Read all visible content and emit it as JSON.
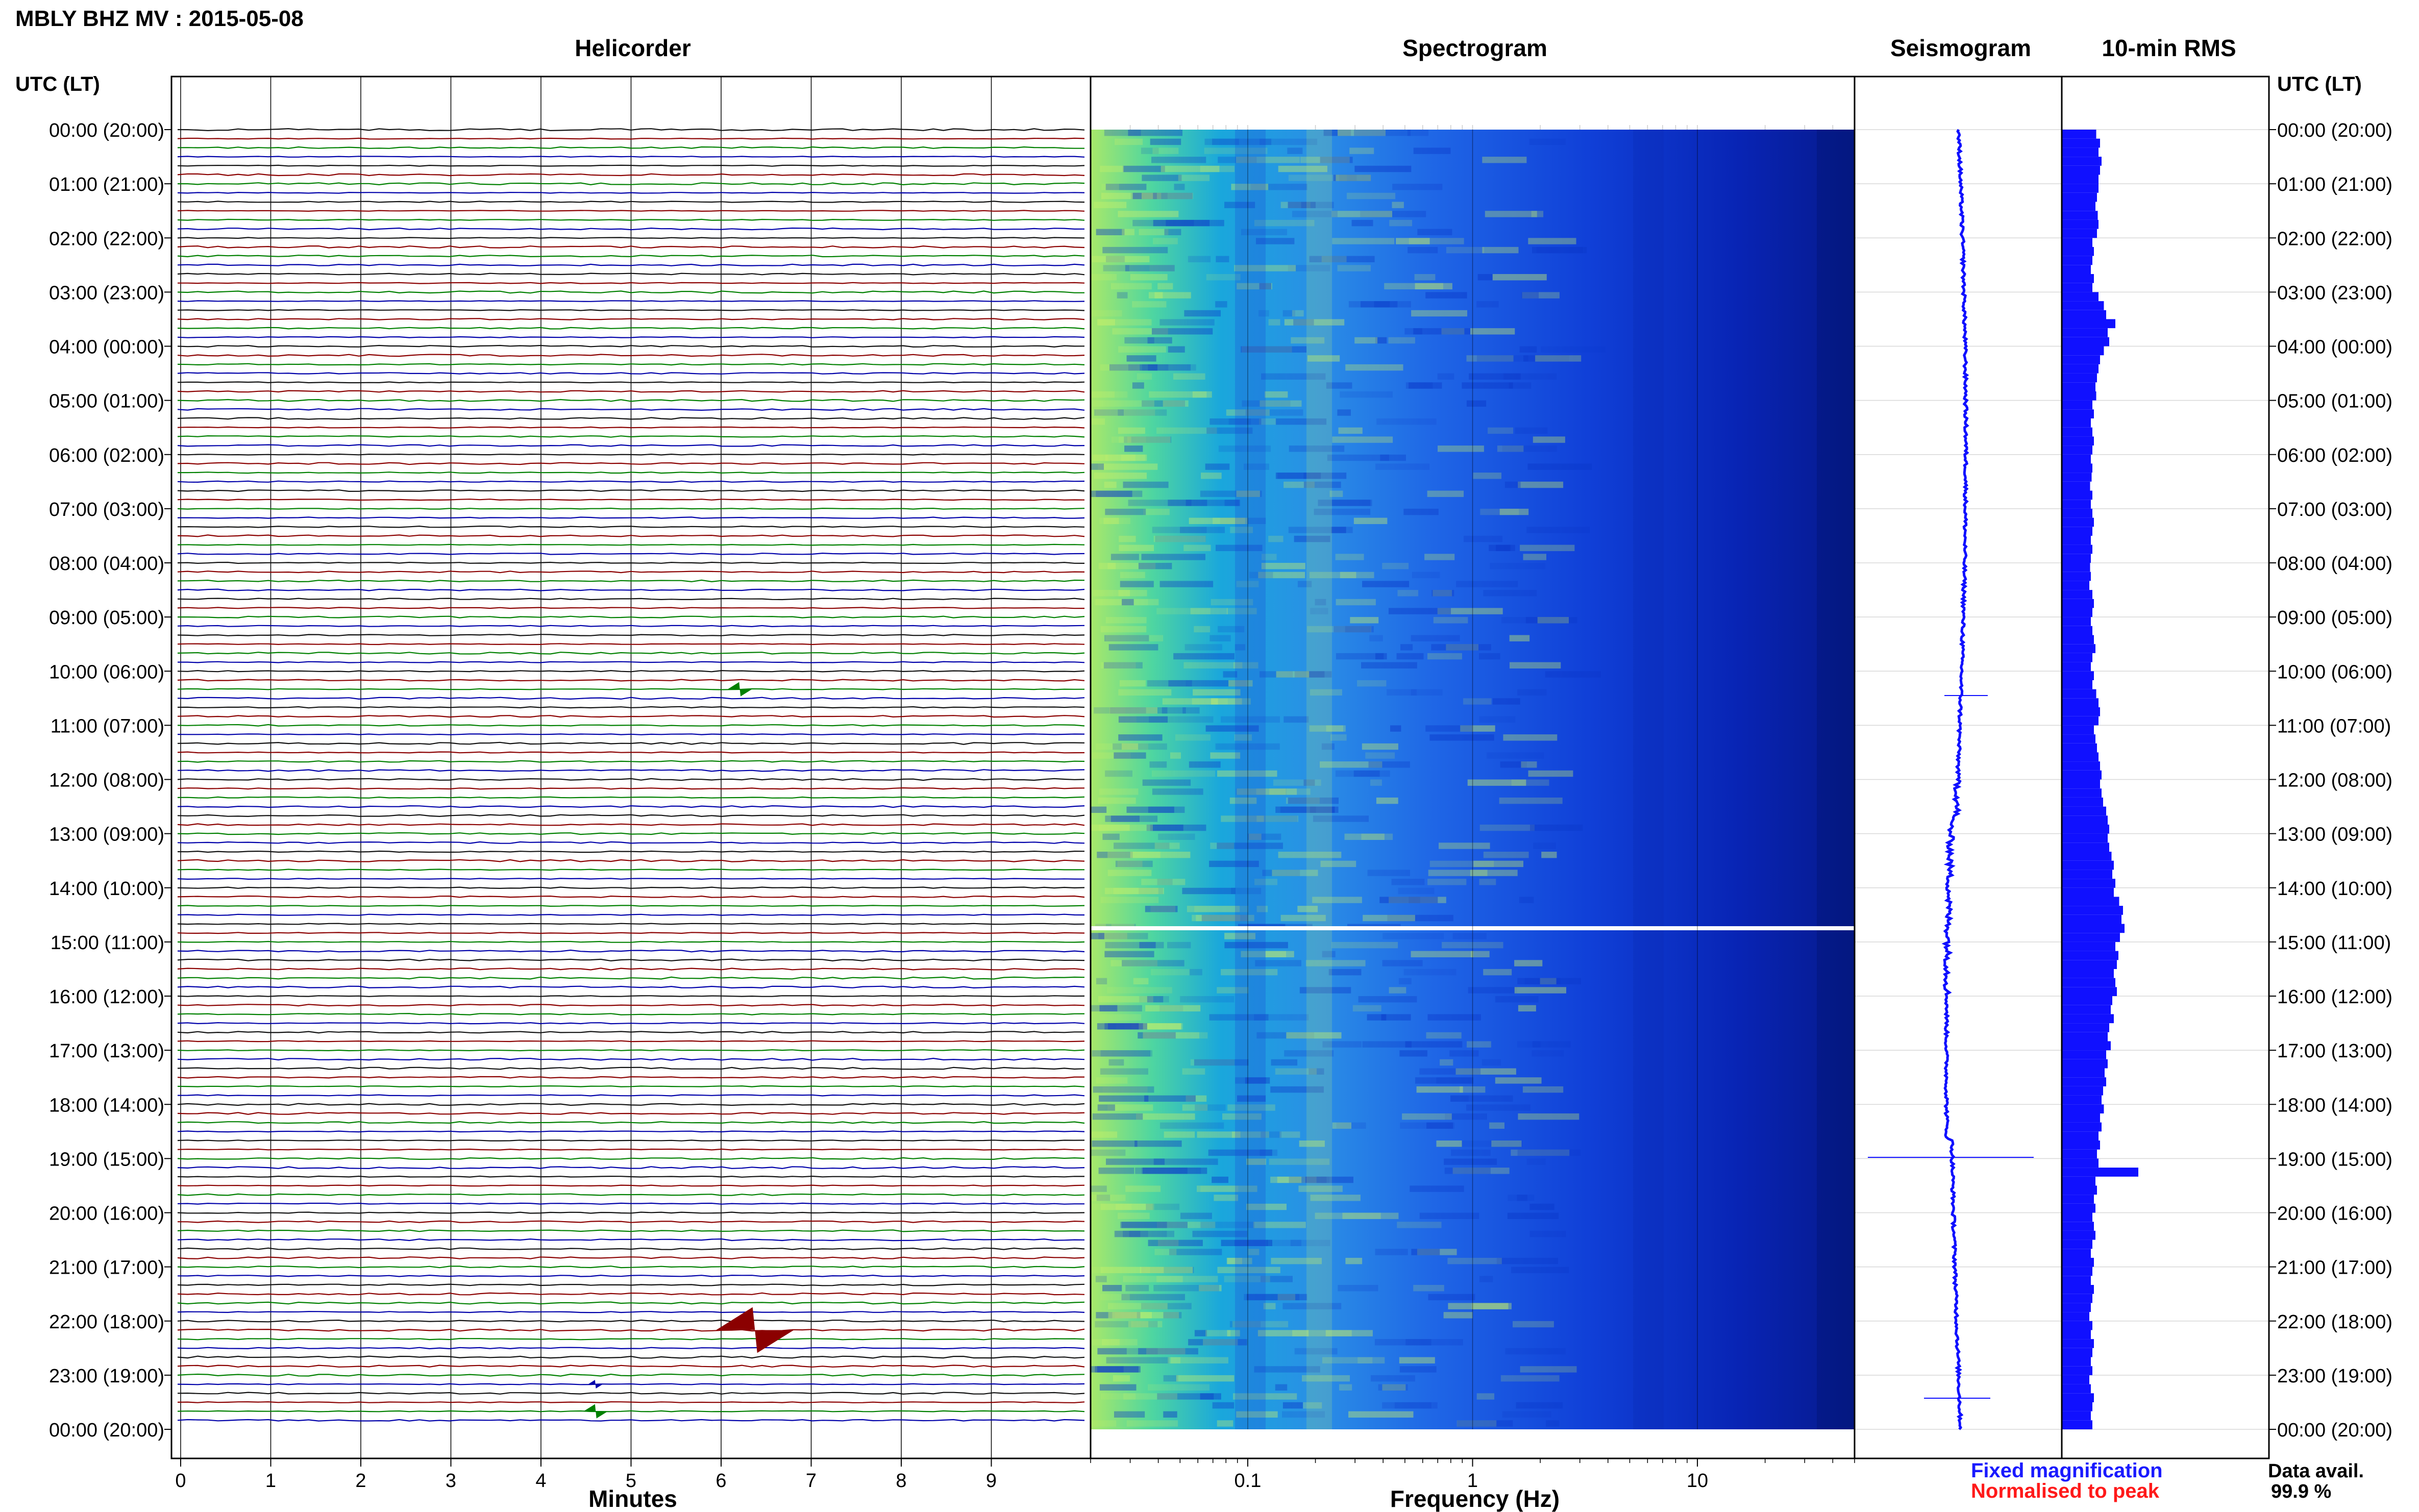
{
  "header": {
    "title": "MBLY BHZ MV : 2015-05-08",
    "utc_label": "UTC (LT)"
  },
  "panels": {
    "helicorder": "Helicorder",
    "spectrogram": "Spectrogram",
    "seismogram": "Seismogram",
    "rms": "10-min RMS"
  },
  "footer": {
    "fixed": "Fixed magnification",
    "normalised": "Normalised to peak",
    "avail_label": "Data avail.",
    "avail_value": "99.9 %"
  },
  "colors": {
    "fixed": "#1a1aff",
    "normalised": "#ff1a1a",
    "trace_cycle": [
      "#111111",
      "#8b0000",
      "#008000",
      "#0000aa"
    ],
    "rms_bar": "#1010ff"
  },
  "chart_data": [
    {
      "type": "line",
      "title": "Helicorder",
      "xlabel": "Minutes",
      "x_ticks": [
        "0",
        "1",
        "2",
        "3",
        "4",
        "5",
        "6",
        "7",
        "8",
        "9"
      ],
      "xlim": [
        0,
        10
      ],
      "rows_per_hour": 6,
      "time_labels": [
        "00:00 (20:00)",
        "01:00 (21:00)",
        "02:00 (22:00)",
        "03:00 (23:00)",
        "04:00 (00:00)",
        "05:00 (01:00)",
        "06:00 (02:00)",
        "07:00 (03:00)",
        "08:00 (04:00)",
        "09:00 (05:00)",
        "10:00 (06:00)",
        "11:00 (07:00)",
        "12:00 (08:00)",
        "13:00 (09:00)",
        "14:00 (10:00)",
        "15:00 (11:00)",
        "16:00 (12:00)",
        "17:00 (13:00)",
        "18:00 (14:00)",
        "19:00 (15:00)",
        "20:00 (16:00)",
        "21:00 (17:00)",
        "22:00 (18:00)",
        "23:00 (19:00)",
        "00:00 (20:00)"
      ],
      "events": [
        {
          "row": 62,
          "minute": 6.2,
          "amp": 1.0
        },
        {
          "row": 133,
          "minute": 6.35,
          "amp": 3.2
        },
        {
          "row": 139,
          "minute": 4.6,
          "amp": 0.6
        },
        {
          "row": 142,
          "minute": 4.6,
          "amp": 1.0
        }
      ]
    },
    {
      "type": "heatmap",
      "title": "Spectrogram",
      "xlabel": "Frequency (Hz)",
      "x_scale": "log",
      "xlim": [
        0.02,
        50
      ],
      "x_ticks": [
        "0.1",
        "1",
        "10"
      ]
    },
    {
      "type": "line",
      "title": "Seismogram"
    },
    {
      "type": "bar",
      "title": "10-min RMS",
      "bins_per_hour": 6,
      "peak_hour": 19,
      "values_relative": [
        0.45,
        0.5,
        0.48,
        0.52,
        0.5,
        0.48,
        0.48,
        0.46,
        0.44,
        0.47,
        0.48,
        0.46,
        0.4,
        0.42,
        0.4,
        0.38,
        0.42,
        0.4,
        0.48,
        0.55,
        0.58,
        0.7,
        0.6,
        0.62,
        0.55,
        0.5,
        0.48,
        0.46,
        0.44,
        0.45,
        0.4,
        0.42,
        0.38,
        0.4,
        0.42,
        0.4,
        0.38,
        0.4,
        0.39,
        0.37,
        0.4,
        0.38,
        0.4,
        0.42,
        0.4,
        0.38,
        0.4,
        0.38,
        0.37,
        0.38,
        0.36,
        0.4,
        0.42,
        0.4,
        0.38,
        0.4,
        0.42,
        0.44,
        0.4,
        0.38,
        0.42,
        0.4,
        0.45,
        0.48,
        0.5,
        0.48,
        0.42,
        0.44,
        0.46,
        0.48,
        0.5,
        0.52,
        0.5,
        0.52,
        0.54,
        0.58,
        0.6,
        0.62,
        0.6,
        0.62,
        0.65,
        0.68,
        0.66,
        0.7,
        0.68,
        0.75,
        0.8,
        0.78,
        0.82,
        0.76,
        0.7,
        0.74,
        0.72,
        0.68,
        0.7,
        0.72,
        0.66,
        0.64,
        0.68,
        0.62,
        0.6,
        0.64,
        0.58,
        0.6,
        0.56,
        0.58,
        0.54,
        0.52,
        0.55,
        0.5,
        0.52,
        0.48,
        0.5,
        0.46,
        0.48,
        1.0,
        0.44,
        0.46,
        0.42,
        0.44,
        0.4,
        0.42,
        0.44,
        0.4,
        0.38,
        0.42,
        0.4,
        0.38,
        0.42,
        0.4,
        0.38,
        0.36,
        0.4,
        0.38,
        0.42,
        0.4,
        0.38,
        0.4,
        0.36,
        0.38,
        0.42,
        0.4,
        0.38,
        0.4
      ]
    }
  ]
}
